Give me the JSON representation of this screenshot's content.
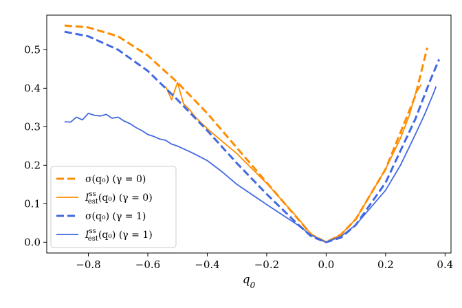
{
  "chart_data": {
    "type": "line",
    "title": "",
    "xlabel": "q_0",
    "ylabel": "",
    "xlim": [
      -0.94,
      0.42
    ],
    "ylim": [
      -0.028,
      0.59
    ],
    "xticks": [
      -0.8,
      -0.6,
      -0.4,
      -0.2,
      0.0,
      0.2,
      0.4
    ],
    "xtick_labels": [
      "−0.8",
      "−0.6",
      "−0.4",
      "−0.2",
      "0.0",
      "0.2",
      "0.4"
    ],
    "yticks": [
      0.0,
      0.1,
      0.2,
      0.3,
      0.4,
      0.5
    ],
    "ytick_labels": [
      "0.0",
      "0.1",
      "0.2",
      "0.3",
      "0.4",
      "0.5"
    ],
    "legend_position": "lower-left",
    "series": [
      {
        "name": "σ(q₀) (γ = 0)",
        "color": "#ff8c00",
        "style": "dashed",
        "x": [
          -0.88,
          -0.8,
          -0.7,
          -0.6,
          -0.5,
          -0.4,
          -0.3,
          -0.2,
          -0.1,
          -0.05,
          0.0,
          0.05,
          0.1,
          0.2,
          0.3,
          0.34
        ],
        "y": [
          0.563,
          0.558,
          0.535,
          0.485,
          0.415,
          0.335,
          0.245,
          0.155,
          0.065,
          0.02,
          0.0,
          0.02,
          0.06,
          0.19,
          0.38,
          0.505
        ]
      },
      {
        "name": "I_est^ss(q₀) (γ = 0)",
        "color": "#ff8c00",
        "style": "solid",
        "x": [
          -0.54,
          -0.52,
          -0.5,
          -0.48,
          -0.46,
          -0.44,
          -0.42,
          -0.4,
          -0.35,
          -0.3,
          -0.2,
          -0.1,
          -0.05,
          0.0,
          0.05,
          0.1,
          0.2,
          0.25,
          0.28,
          0.3,
          0.32
        ],
        "y": [
          0.405,
          0.37,
          0.415,
          0.36,
          0.345,
          0.325,
          0.31,
          0.295,
          0.262,
          0.23,
          0.153,
          0.067,
          0.02,
          0.0,
          0.02,
          0.06,
          0.19,
          0.27,
          0.33,
          0.385,
          0.41
        ]
      },
      {
        "name": "σ(q₀) (γ = 1)",
        "color": "#4169e1",
        "style": "dashed",
        "x": [
          -0.88,
          -0.8,
          -0.7,
          -0.6,
          -0.5,
          -0.4,
          -0.3,
          -0.2,
          -0.1,
          -0.05,
          0.0,
          0.05,
          0.1,
          0.2,
          0.3,
          0.35,
          0.38
        ],
        "y": [
          0.547,
          0.535,
          0.5,
          0.445,
          0.37,
          0.29,
          0.205,
          0.125,
          0.05,
          0.015,
          0.0,
          0.012,
          0.045,
          0.155,
          0.32,
          0.42,
          0.475
        ]
      },
      {
        "name": "I_est^ss(q₀) (γ = 1)",
        "color": "#4169e1",
        "style": "solid",
        "x": [
          -0.88,
          -0.86,
          -0.84,
          -0.82,
          -0.8,
          -0.78,
          -0.76,
          -0.74,
          -0.72,
          -0.7,
          -0.68,
          -0.66,
          -0.64,
          -0.62,
          -0.6,
          -0.58,
          -0.56,
          -0.54,
          -0.52,
          -0.5,
          -0.45,
          -0.4,
          -0.35,
          -0.3,
          -0.2,
          -0.1,
          -0.05,
          0.0,
          0.05,
          0.1,
          0.2,
          0.25,
          0.3,
          0.33,
          0.36,
          0.37
        ],
        "y": [
          0.313,
          0.312,
          0.325,
          0.318,
          0.335,
          0.33,
          0.328,
          0.332,
          0.322,
          0.325,
          0.315,
          0.308,
          0.298,
          0.29,
          0.28,
          0.275,
          0.268,
          0.265,
          0.255,
          0.25,
          0.232,
          0.212,
          0.183,
          0.15,
          0.098,
          0.047,
          0.018,
          0.0,
          0.015,
          0.045,
          0.135,
          0.2,
          0.28,
          0.33,
          0.385,
          0.405
        ]
      }
    ],
    "legend": [
      {
        "label_main": "σ(q₀) (γ = 0)",
        "label_sup": "",
        "color": "#ff8c00",
        "style": "dashed"
      },
      {
        "label_main": "I",
        "label_sup": "ss",
        "label_sub": "est",
        "label_tail": "(q₀) (γ = 0)",
        "color": "#ff8c00",
        "style": "solid"
      },
      {
        "label_main": "σ(q₀) (γ = 1)",
        "label_sup": "",
        "color": "#4169e1",
        "style": "dashed"
      },
      {
        "label_main": "I",
        "label_sup": "ss",
        "label_sub": "est",
        "label_tail": "(q₀) (γ = 1)",
        "color": "#4169e1",
        "style": "solid"
      }
    ]
  }
}
